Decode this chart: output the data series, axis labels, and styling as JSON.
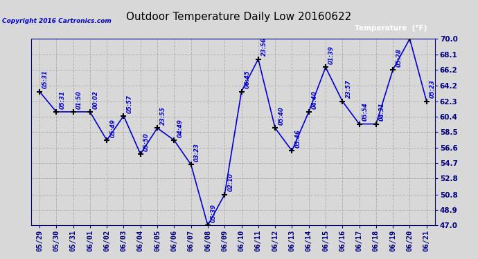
{
  "title": "Outdoor Temperature Daily Low 20160622",
  "copyright": "Copyright 2016 Cartronics.com",
  "legend_label": "Temperature  (°F)",
  "x_labels": [
    "05/29",
    "05/30",
    "05/31",
    "06/01",
    "06/02",
    "06/03",
    "06/04",
    "06/05",
    "06/06",
    "06/07",
    "06/08",
    "06/09",
    "06/10",
    "06/11",
    "06/12",
    "06/13",
    "06/14",
    "06/15",
    "06/16",
    "06/17",
    "06/18",
    "06/19",
    "06/20",
    "06/21"
  ],
  "y_values": [
    63.5,
    61.0,
    61.0,
    61.0,
    57.5,
    60.5,
    55.8,
    59.0,
    57.5,
    54.5,
    47.0,
    50.8,
    63.5,
    67.5,
    59.0,
    56.2,
    61.0,
    66.5,
    62.3,
    59.5,
    59.5,
    66.2,
    70.0,
    62.3
  ],
  "point_labels": [
    "05:31",
    "05:31",
    "01:50",
    "00:02",
    "05:49",
    "05:57",
    "05:50",
    "23:55",
    "04:49",
    "03:23",
    "05:39",
    "02:10",
    "06:45",
    "23:56",
    "05:40",
    "05:46",
    "04:40",
    "01:39",
    "23:57",
    "05:54",
    "04:31",
    "05:28",
    "",
    "05:23"
  ],
  "ylim_min": 47.0,
  "ylim_max": 70.0,
  "yticks": [
    47.0,
    48.9,
    50.8,
    52.8,
    54.7,
    56.6,
    58.5,
    60.4,
    62.3,
    64.2,
    66.2,
    68.1,
    70.0
  ],
  "line_color": "#0000cc",
  "marker_color": "#000000",
  "grid_color": "#b0b0b0",
  "background_color": "#d8d8d8",
  "plot_bg_color": "#d8d8d8",
  "title_color": "#000000",
  "label_color": "#0000cc",
  "axis_color": "#000080",
  "legend_bg": "#0000cc",
  "legend_fg": "#ffffff",
  "copyright_color": "#0000cc",
  "label_fontsize": 6.0,
  "tick_fontsize": 7.5,
  "title_fontsize": 11
}
